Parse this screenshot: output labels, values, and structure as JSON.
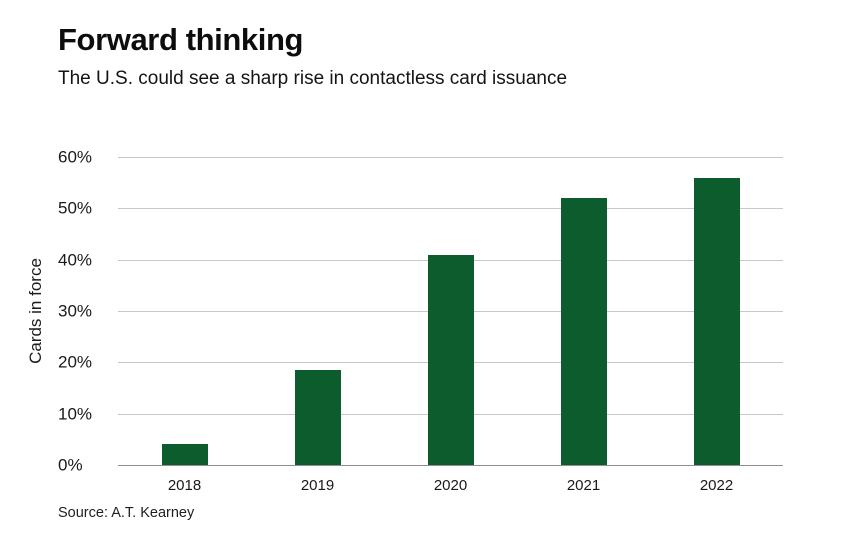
{
  "chart_data": {
    "type": "bar",
    "title": "Forward thinking",
    "subtitle": "The U.S. could see a sharp rise in contactless card issuance",
    "ylabel": "Cards in force",
    "xlabel": "",
    "categories": [
      "2018",
      "2019",
      "2020",
      "2021",
      "2022"
    ],
    "values": [
      4,
      18.5,
      41,
      52,
      56
    ],
    "ylim": [
      0,
      60
    ],
    "yticks": [
      0,
      10,
      20,
      30,
      40,
      50,
      60
    ],
    "ytick_suffix": "%",
    "grid": "horizontal",
    "legend": "none",
    "bar_color": "#0d5c2d",
    "gridline_color": "#c7c7c7",
    "source": "Source: A.T. Kearney"
  }
}
